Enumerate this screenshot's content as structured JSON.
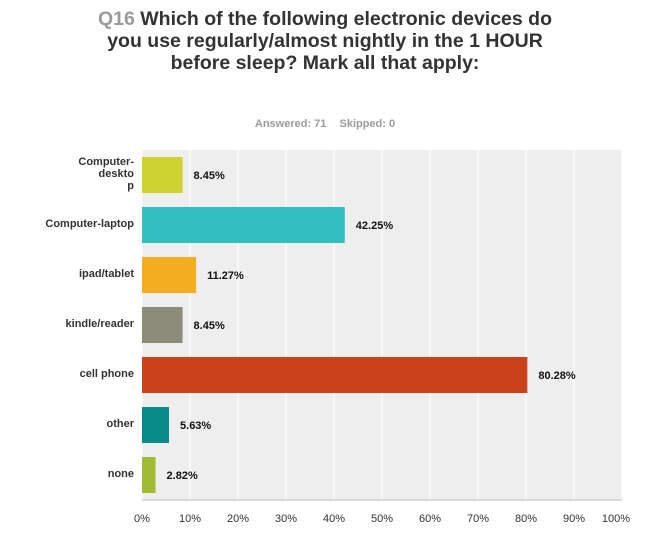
{
  "header": {
    "qnum": "Q16",
    "question": "Which of the following electronic devices do you use regularly/almost nightly in the 1 HOUR before sleep? Mark all that apply:",
    "answered": "Answered: 71",
    "skipped": "Skipped: 0"
  },
  "chart_data": {
    "type": "bar",
    "orientation": "horizontal",
    "categories": [
      "Computer-desktop",
      "Computer-laptop",
      "ipad/tablet",
      "kindle/reader",
      "cell phone",
      "other",
      "none"
    ],
    "category_labels": [
      [
        "Computer-",
        "deskto",
        "p"
      ],
      [
        "Computer-laptop"
      ],
      [
        "ipad/tablet"
      ],
      [
        "kindle/reader"
      ],
      [
        "cell phone"
      ],
      [
        "other"
      ],
      [
        "none"
      ]
    ],
    "values": [
      8.45,
      42.25,
      11.27,
      8.45,
      80.28,
      5.63,
      2.82
    ],
    "value_labels": [
      "8.45%",
      "42.25%",
      "11.27%",
      "8.45%",
      "80.28%",
      "5.63%",
      "2.82%"
    ],
    "colors": [
      "#cdd430",
      "#33bfbf",
      "#f5ae21",
      "#8c8c7a",
      "#c9421c",
      "#0b8a8a",
      "#a3bb34"
    ],
    "xlim": [
      0,
      100
    ],
    "xticks": [
      "0%",
      "10%",
      "20%",
      "30%",
      "40%",
      "50%",
      "60%",
      "70%",
      "80%",
      "90%",
      "100%"
    ],
    "grid": true,
    "plot_background": "#eeeeee"
  }
}
